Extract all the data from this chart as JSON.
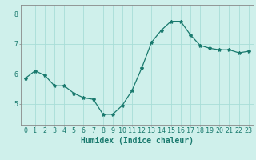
{
  "x": [
    0,
    1,
    2,
    3,
    4,
    5,
    6,
    7,
    8,
    9,
    10,
    11,
    12,
    13,
    14,
    15,
    16,
    17,
    18,
    19,
    20,
    21,
    22,
    23
  ],
  "y": [
    5.85,
    6.1,
    5.95,
    5.6,
    5.6,
    5.35,
    5.2,
    5.15,
    4.65,
    4.65,
    4.95,
    5.45,
    6.2,
    7.05,
    7.45,
    7.75,
    7.75,
    7.3,
    6.95,
    6.85,
    6.8,
    6.8,
    6.7,
    6.75
  ],
  "line_color": "#1a7a6e",
  "marker": "*",
  "marker_size": 3,
  "bg_color": "#cff0eb",
  "grid_color": "#a8ddd7",
  "xlabel": "Humidex (Indice chaleur)",
  "ylim_min": 4.3,
  "ylim_max": 8.3,
  "xlim_min": -0.5,
  "xlim_max": 23.5,
  "yticks": [
    5,
    6,
    7,
    8
  ],
  "xlabel_fontsize": 7,
  "tick_fontsize": 6,
  "tick_color": "#1a7a6e",
  "axis_color": "#888888",
  "linewidth": 0.9
}
